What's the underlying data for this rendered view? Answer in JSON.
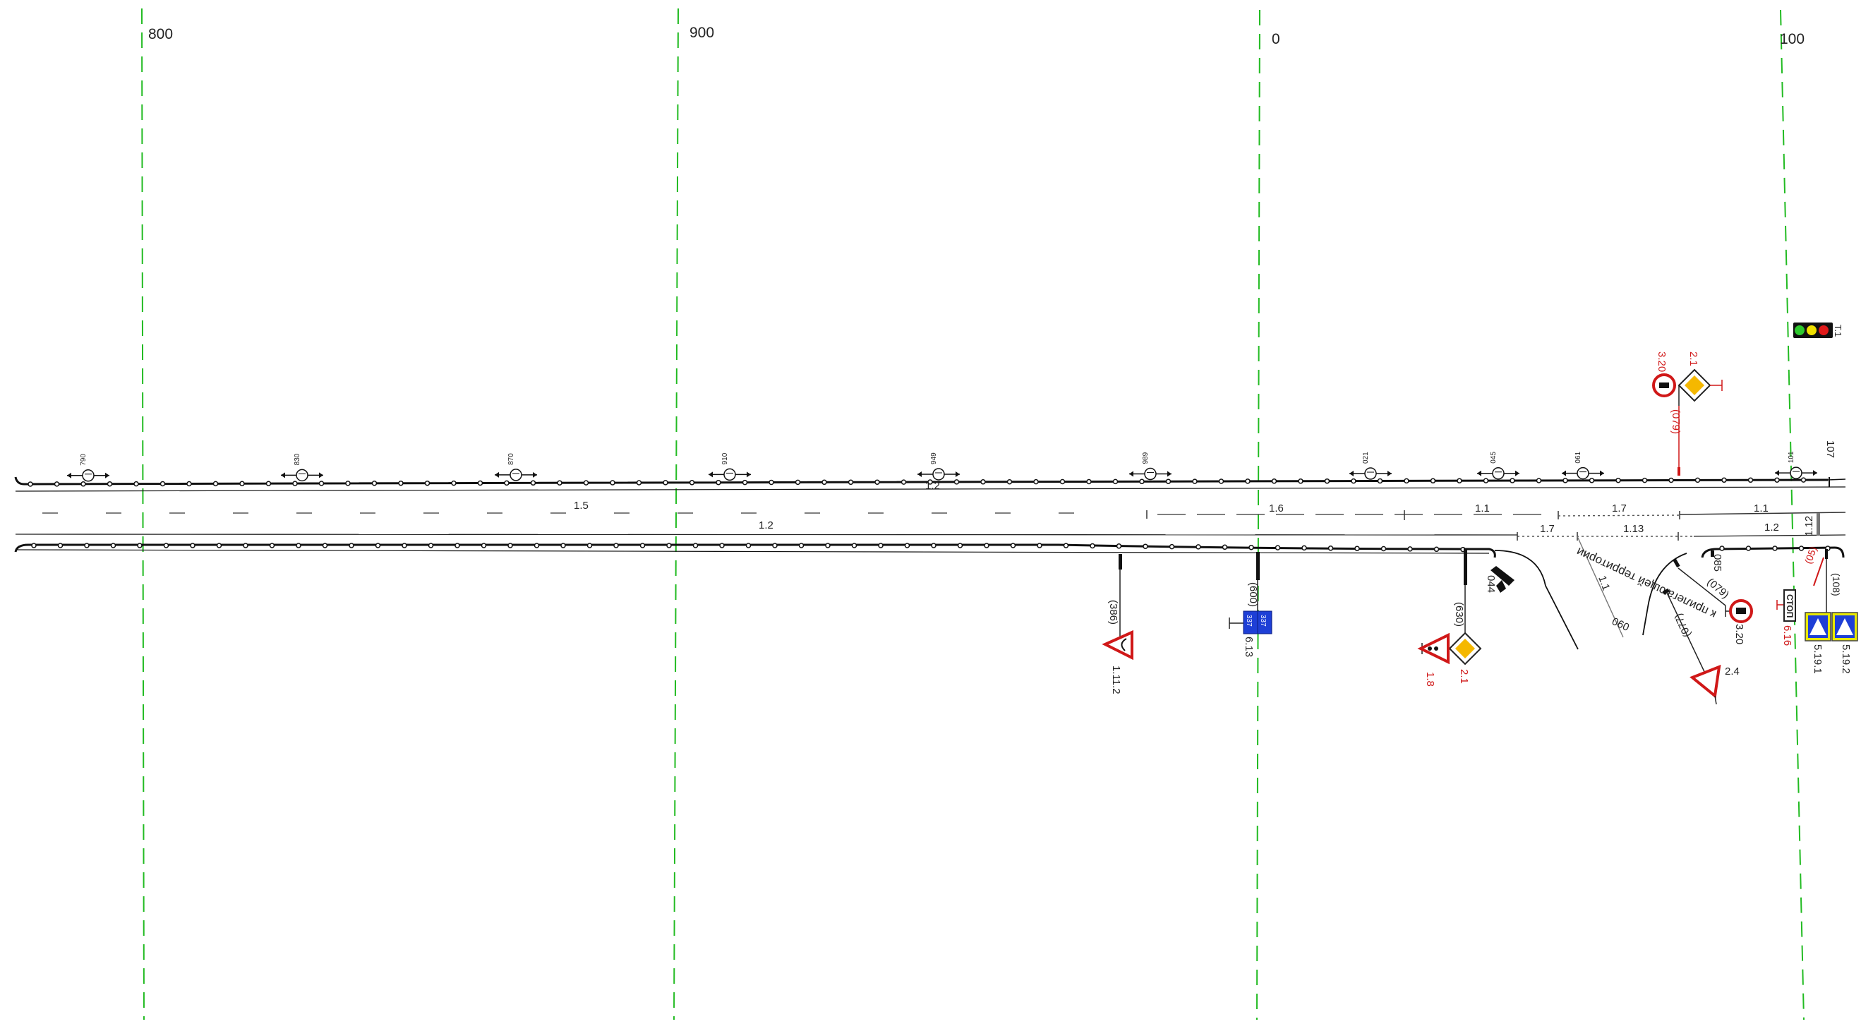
{
  "chainage": {
    "labels": [
      {
        "text": "800"
      },
      {
        "text": "900"
      },
      {
        "text": "0"
      },
      {
        "text": "100"
      }
    ],
    "guide_color": "#22bb22"
  },
  "lights": {
    "labels": [
      "790",
      "830",
      "870",
      "910",
      "949",
      "989",
      "021",
      "045",
      "061",
      "101"
    ]
  },
  "markings": {
    "upper_road": [
      "1.2"
    ],
    "lane": [
      "1.5",
      "1.6",
      "1.1",
      "1.7",
      "1.1"
    ],
    "lower_lane": [
      "1.2",
      "1.7",
      "1.13",
      "1.2",
      "1.12"
    ],
    "ramp": [
      "1.1"
    ]
  },
  "signs": {
    "s1_11_2": {
      "code": "1.11.2",
      "dist": "(386)"
    },
    "s6_13": {
      "code": "6.13",
      "dist": "(600)",
      "plate_a": "337",
      "plate_b": "337"
    },
    "s2_1_lower": {
      "code": "2.1",
      "dist": "(630)"
    },
    "s1_8": {
      "code": "1.8"
    },
    "camera": {
      "code": "044"
    },
    "s2_4": {
      "code": "2.4",
      "dist": "(077)"
    },
    "s3_20_lower": {
      "code": "3.20",
      "dist": "(079)"
    },
    "s3_20_upper": {
      "code": "3.20",
      "dist": "(079)"
    },
    "s2_1_upper": {
      "code": "2.1"
    },
    "s6_16": {
      "code": "6.16",
      "plate": "СТОП",
      "dist": "(05)"
    },
    "s5_19_1": {
      "code": "5.19.1",
      "dist": "(108)"
    },
    "s5_19_2": {
      "code": "5.19.2"
    },
    "traffic_light": {
      "code": "Т.1"
    },
    "point_085": "085",
    "point_090": "090",
    "point_107": "107"
  },
  "direction_text": "к прилегающей территории",
  "colors": {
    "sign_red": "#d01818",
    "priority_yellow": "#f5b800",
    "info_blue": "#1e3fd6",
    "crossing_yellow": "#e8e800"
  }
}
